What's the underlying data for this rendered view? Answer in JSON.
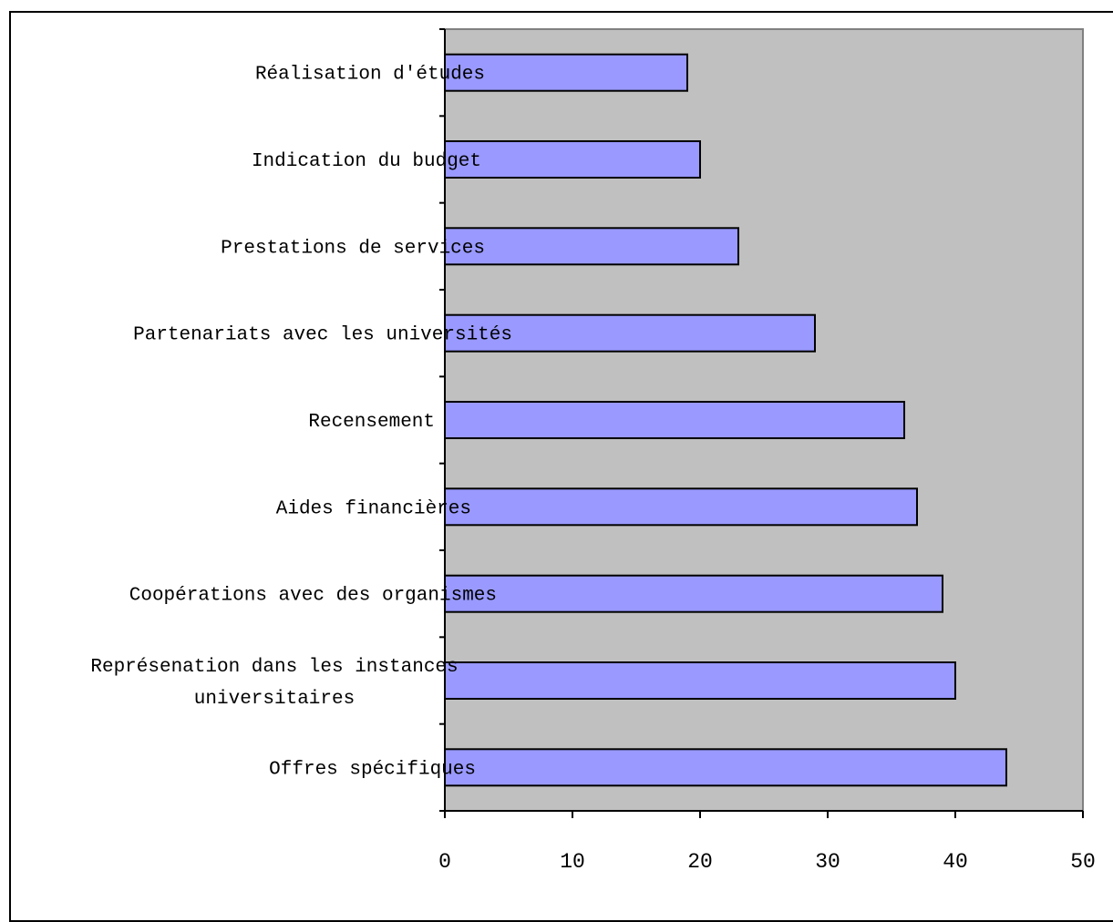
{
  "chart_data": {
    "type": "bar",
    "orientation": "horizontal",
    "categories": [
      [
        "Offres spécifiques"
      ],
      [
        "Représenation dans les instances",
        "universitaires"
      ],
      [
        "Coopérations avec des organismes"
      ],
      [
        "Aides financières"
      ],
      [
        "Recensement"
      ],
      [
        "Partenariats avec les universités"
      ],
      [
        "Prestations de services"
      ],
      [
        "Indication du budget"
      ],
      [
        "Réalisation d'études"
      ]
    ],
    "values": [
      44,
      40,
      39,
      37,
      36,
      29,
      23,
      20,
      19
    ],
    "xlim": [
      0,
      50
    ],
    "xticks": [
      "0",
      "10",
      "20",
      "30",
      "40",
      "50"
    ],
    "title": "",
    "xlabel": "",
    "ylabel": "",
    "grid": false,
    "legend": "none",
    "colors": {
      "bar_fill": "#9999ff",
      "bar_stroke": "#000000",
      "plot_background": "#c0c0c0",
      "plot_border": "#808080"
    }
  }
}
